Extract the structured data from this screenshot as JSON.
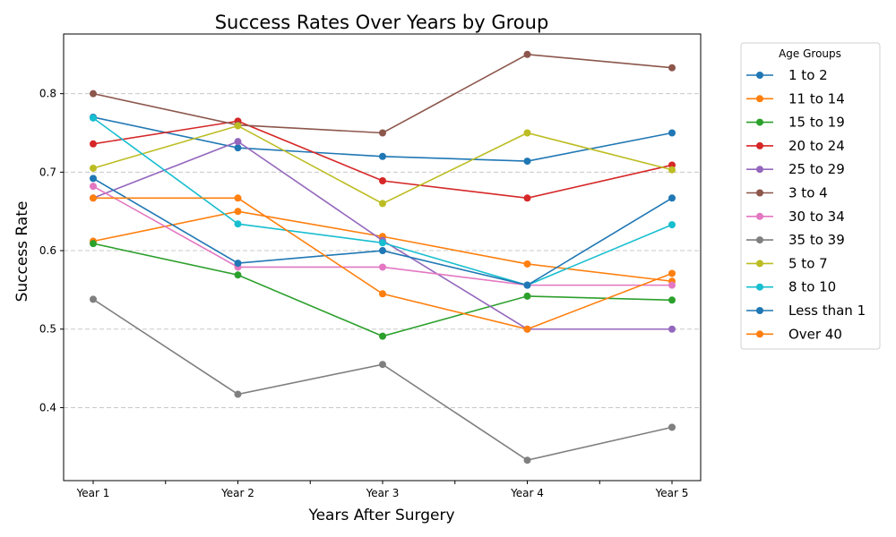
{
  "chart_data": {
    "type": "line",
    "title": "Success Rates Over Years by Group",
    "xlabel": "Years After Surgery",
    "ylabel": "Success Rate",
    "categories": [
      "Year 1",
      "Year 2",
      "Year 3",
      "Year 4",
      "Year 5"
    ],
    "ylim": [
      0.307,
      0.876
    ],
    "yticks": [
      0.4,
      0.5,
      0.6,
      0.7,
      0.8
    ],
    "ytick_labels": [
      "0.4",
      "0.5",
      "0.6",
      "0.7",
      "0.8"
    ],
    "grid": "horizontal dashed",
    "legend": {
      "title": "Age Groups",
      "placement": "outside right"
    },
    "series": [
      {
        "name": "1 to 2",
        "color": "#1f77b4",
        "values": [
          0.77,
          0.731,
          0.72,
          0.714,
          0.75
        ]
      },
      {
        "name": "11 to 14",
        "color": "#ff7f0e",
        "values": [
          0.612,
          0.65,
          0.618,
          0.583,
          0.561
        ]
      },
      {
        "name": "15 to 19",
        "color": "#2ca02c",
        "values": [
          0.609,
          0.569,
          0.491,
          0.542,
          0.537
        ]
      },
      {
        "name": "20 to 24",
        "color": "#d62728",
        "values": [
          0.736,
          0.765,
          0.689,
          0.667,
          0.709
        ]
      },
      {
        "name": "25 to 29",
        "color": "#9467bd",
        "values": [
          0.667,
          0.739,
          0.613,
          0.5,
          0.5
        ]
      },
      {
        "name": "3 to 4",
        "color": "#8c564b",
        "values": [
          0.8,
          0.76,
          0.75,
          0.85,
          0.833
        ]
      },
      {
        "name": "30 to 34",
        "color": "#e377c2",
        "values": [
          0.682,
          0.579,
          0.579,
          0.556,
          0.556
        ]
      },
      {
        "name": "35 to 39",
        "color": "#7f7f7f",
        "values": [
          0.538,
          0.417,
          0.455,
          0.333,
          0.375
        ]
      },
      {
        "name": "5 to 7",
        "color": "#bcbd22",
        "values": [
          0.705,
          0.759,
          0.66,
          0.75,
          0.703
        ]
      },
      {
        "name": "8 to 10",
        "color": "#17becf",
        "values": [
          0.769,
          0.634,
          0.61,
          0.556,
          0.633
        ]
      },
      {
        "name": "Less than 1",
        "color": "#1f77b4",
        "values": [
          0.692,
          0.584,
          0.6,
          0.556,
          0.667
        ]
      },
      {
        "name": "Over 40",
        "color": "#ff7f0e",
        "values": [
          0.667,
          0.667,
          0.545,
          0.5,
          0.571
        ]
      }
    ]
  }
}
